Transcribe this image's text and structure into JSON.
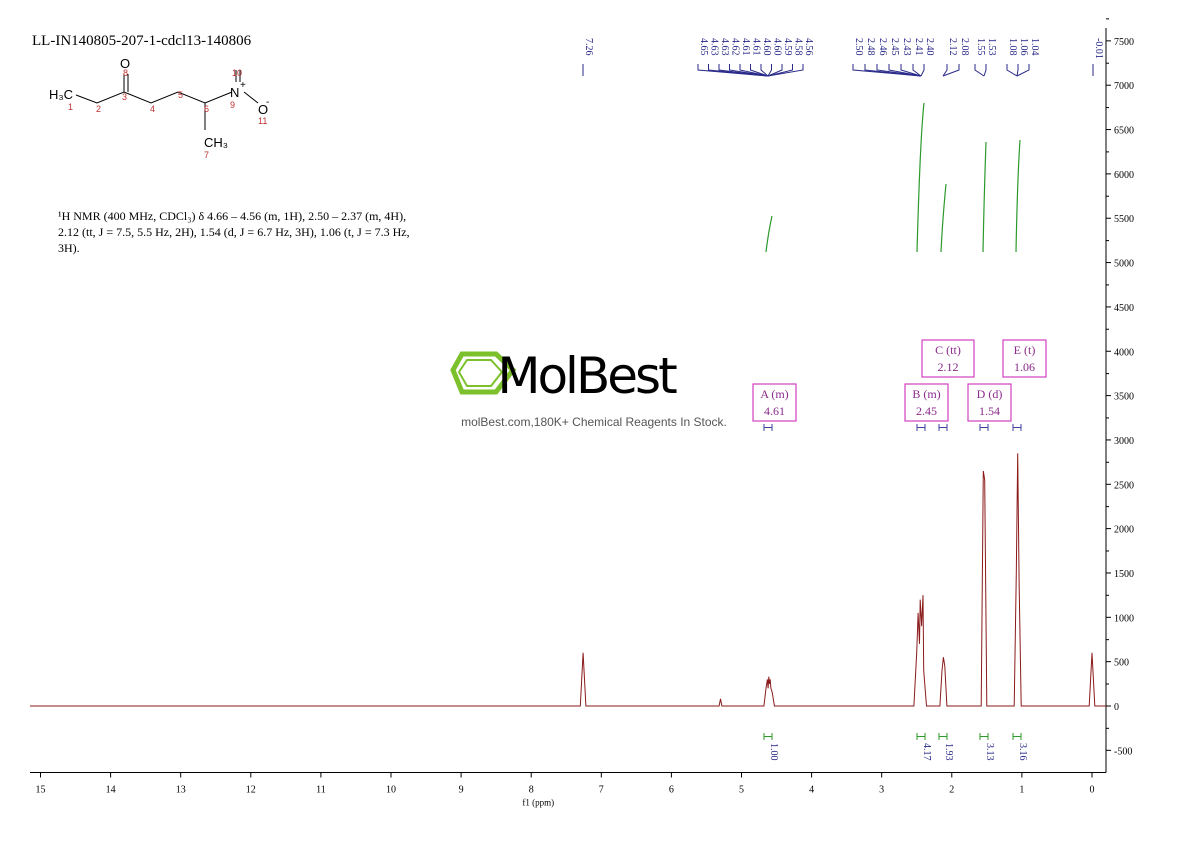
{
  "chart_data": {
    "type": "line",
    "title": "LL-IN140805-207-1-cdcl13-140806",
    "xlabel": "f1 (ppm)",
    "x": [
      15.15,
      7.3,
      7.26,
      7.22,
      5.32,
      5.3,
      5.28,
      4.68,
      4.65,
      4.63,
      4.62,
      4.61,
      4.6,
      4.59,
      4.58,
      4.56,
      4.53,
      2.54,
      2.5,
      2.48,
      2.46,
      2.45,
      2.43,
      2.41,
      2.4,
      2.36,
      2.17,
      2.14,
      2.12,
      2.1,
      2.07,
      1.58,
      1.55,
      1.53,
      1.5,
      1.11,
      1.08,
      1.06,
      1.04,
      1.01,
      0.04,
      0.0,
      -0.04,
      -0.2
    ],
    "values": [
      0,
      0,
      600,
      0,
      0,
      80,
      0,
      0,
      200,
      300,
      200,
      330,
      250,
      300,
      200,
      150,
      0,
      0,
      600,
      1050,
      700,
      1200,
      900,
      1250,
      400,
      0,
      0,
      400,
      550,
      450,
      0,
      0,
      2650,
      2550,
      0,
      0,
      1500,
      2850,
      1400,
      0,
      0,
      600,
      0,
      0
    ],
    "color": "#8b1a1a",
    "xlim": [
      15.15,
      -0.2
    ],
    "xticks": [
      15,
      14,
      13,
      12,
      11,
      10,
      9,
      8,
      7,
      6,
      5,
      4,
      3,
      2,
      1,
      0
    ],
    "ylim": [
      -750,
      7600
    ],
    "yticks": [
      -500,
      0,
      500,
      1000,
      1500,
      2000,
      2500,
      3000,
      3500,
      4000,
      4500,
      5000,
      5500,
      6000,
      6500,
      7000,
      7500
    ],
    "peak_labels": [
      "7.26",
      "4.65",
      "4.63",
      "4.63",
      "4.62",
      "4.61",
      "4.61",
      "4.60",
      "4.60",
      "4.59",
      "4.58",
      "4.56",
      "2.50",
      "2.48",
      "2.46",
      "2.45",
      "2.43",
      "2.41",
      "2.40",
      "2.12",
      "2.08",
      "1.55",
      "1.53",
      "1.08",
      "1.06",
      "1.04",
      "-0.01"
    ],
    "multiplets": [
      {
        "name": "A (m)",
        "shift": "4.61"
      },
      {
        "name": "B (m)",
        "shift": "2.45"
      },
      {
        "name": "C (tt)",
        "shift": "2.12"
      },
      {
        "name": "D (d)",
        "shift": "1.54"
      },
      {
        "name": "E (t)",
        "shift": "1.06"
      }
    ],
    "integrals": [
      "1.00",
      "4.17",
      "1.93",
      "3.13",
      "3.16"
    ]
  },
  "structure": {
    "atoms": [
      "H₃C",
      "O",
      "N",
      "+",
      "O",
      "-",
      "CH₃"
    ],
    "numbers": [
      "1",
      "2",
      "3",
      "4",
      "5",
      "6",
      "7",
      "8",
      "9",
      "10",
      "11"
    ]
  },
  "description": "¹H NMR (400 MHz, CDCl₃) δ 4.66 – 4.56 (m, 1H), 2.50 – 2.37 (m, 4H), 2.12 (tt, J = 7.5, 5.5 Hz, 2H), 1.54 (d, J = 6.7 Hz, 3H), 1.06 (t, J = 7.3 Hz, 3H).",
  "watermark": {
    "name": "MolBest",
    "tagline": "molBest.com,180K+ Chemical Reagents In Stock."
  }
}
